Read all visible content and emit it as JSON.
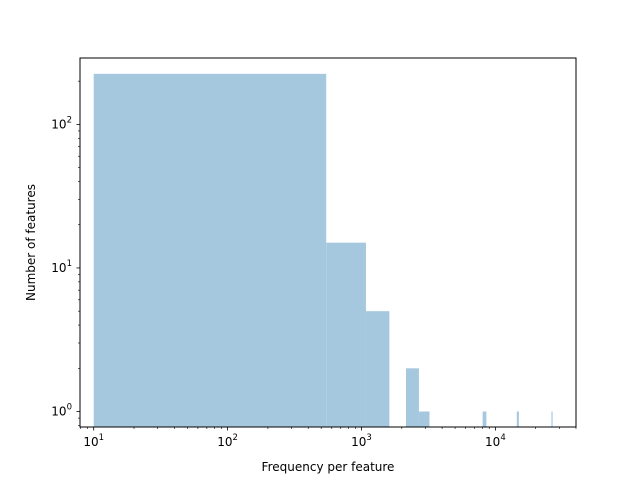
{
  "chart_data": {
    "type": "bar",
    "title": "",
    "xlabel": "Frequency per feature",
    "ylabel": "Number of features",
    "xscale": "log",
    "yscale": "log",
    "xlim": [
      7.9,
      40000
    ],
    "ylim": [
      0.78,
      290
    ],
    "x_ticks": [
      {
        "value": 10,
        "base": "10",
        "exp": "1"
      },
      {
        "value": 100,
        "base": "10",
        "exp": "2"
      },
      {
        "value": 1000,
        "base": "10",
        "exp": "3"
      },
      {
        "value": 10000,
        "base": "10",
        "exp": "4"
      }
    ],
    "y_ticks": [
      {
        "value": 1,
        "base": "10",
        "exp": "0"
      },
      {
        "value": 10,
        "base": "10",
        "exp": "1"
      },
      {
        "value": 100,
        "base": "10",
        "exp": "2"
      }
    ],
    "grid": false,
    "bar_color": "#a6c8df",
    "bins": [
      {
        "x0": 10,
        "x1": 545,
        "count": 225
      },
      {
        "x0": 545,
        "x1": 1080,
        "count": 15
      },
      {
        "x0": 1080,
        "x1": 1615,
        "count": 5
      },
      {
        "x0": 2150,
        "x1": 2685,
        "count": 2
      },
      {
        "x0": 2685,
        "x1": 3220,
        "count": 1
      },
      {
        "x0": 8030,
        "x1": 8565,
        "count": 1
      },
      {
        "x0": 14450,
        "x1": 14985,
        "count": 1
      },
      {
        "x0": 26220,
        "x1": 26755,
        "count": 1
      }
    ]
  }
}
